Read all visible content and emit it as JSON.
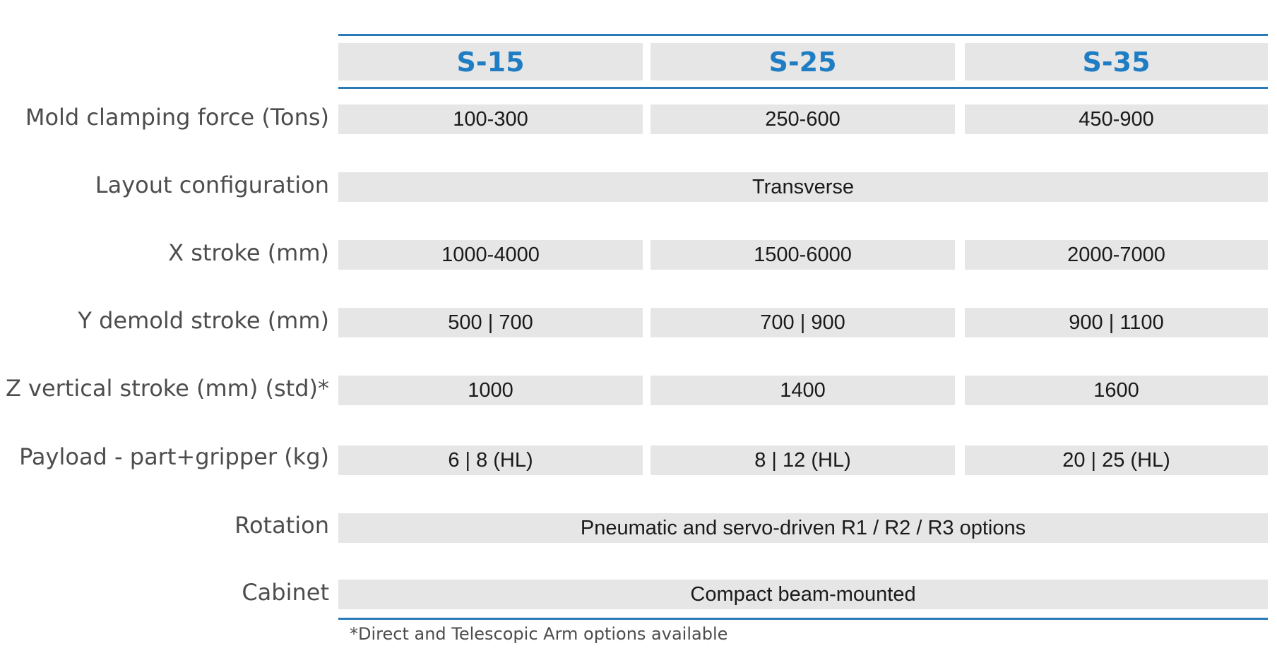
{
  "header": {
    "models": [
      "S-15",
      "S-25",
      "S-35"
    ]
  },
  "rows": [
    {
      "label": "Mold clamping force (Tons)",
      "values": [
        "100-300",
        "250-600",
        "450-900"
      ]
    },
    {
      "label": "Layout configuration",
      "span": "Transverse"
    },
    {
      "label": "X stroke (mm)",
      "values": [
        "1000-4000",
        "1500-6000",
        "2000-7000"
      ]
    },
    {
      "label": "Y demold stroke (mm)",
      "values": [
        "500 | 700",
        "700 | 900",
        "900 | 1100"
      ]
    },
    {
      "label": "Z vertical stroke (mm) (std)*",
      "values": [
        "1000",
        "1400",
        "1600"
      ]
    },
    {
      "label": "Payload - part+gripper (kg)",
      "values": [
        "6 | 8 (HL)",
        "8 | 12 (HL)",
        "20 | 25 (HL)"
      ]
    },
    {
      "label": "Rotation",
      "span": "Pneumatic and servo-driven R1 / R2 / R3 options"
    },
    {
      "label": "Cabinet",
      "span": "Compact beam-mounted"
    }
  ],
  "footnote": "*Direct and Telescopic Arm options available",
  "colors": {
    "accent": "#2a7ab8",
    "header_text": "#1f7dc4",
    "cell_bg": "#e6e6e6",
    "label_text": "#4d4d4d"
  }
}
